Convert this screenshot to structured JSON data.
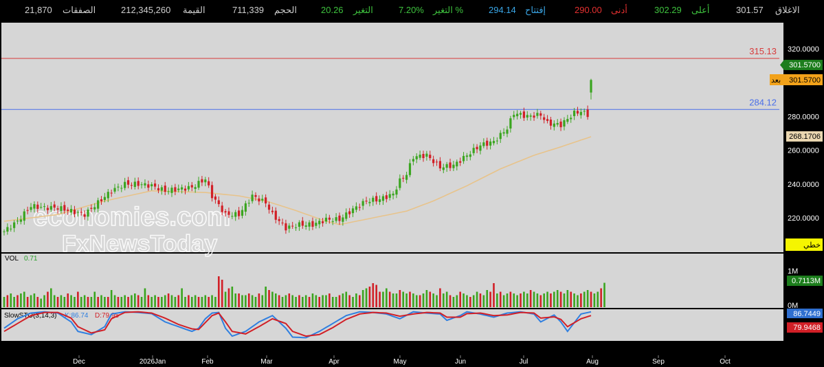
{
  "stats_bar": {
    "close_label": "الاغلاق",
    "close_value": "301.57",
    "high_label": "أعلى",
    "high_value": "302.29",
    "low_label": "أدنى",
    "low_value": "290.00",
    "open_label": "إفتتاح",
    "open_value": "294.14",
    "change_pct_label": "التغير %",
    "change_pct_value": "7.20%",
    "change_label": "التغير",
    "change_value": "20.26",
    "volume_label": "الحجم",
    "volume_value": "711,339",
    "value_label": "القيمة",
    "value_value": "212,345,260",
    "trades_label": "الصفقات",
    "trades_value": "21,870"
  },
  "colors": {
    "up": "#3aa51f",
    "down": "#d11f26",
    "ma": "#e8c38a",
    "resistance": "#d83a3a",
    "support": "#4a6fe8",
    "price_badge": "#1c7d1c",
    "after_badge": "#f2a21a",
    "k_line": "#2f7fe0",
    "d_line": "#d11f26"
  },
  "watermark": {
    "line1": "economies.com",
    "line2": "FxNewsToday"
  },
  "chart_data": [
    {
      "type": "candlestick",
      "id": "price",
      "ylim": [
        203,
        325
      ],
      "y_ticks": [
        "220.0000",
        "240.0000",
        "260.0000",
        "280.0000",
        "300.0000",
        "320.0000"
      ],
      "x_ticks": [
        "Dec",
        "2026Jan",
        "Feb",
        "Mar",
        "Apr",
        "May",
        "Jun",
        "Jul",
        "Aug",
        "Sep",
        "Oct"
      ],
      "hlines": [
        {
          "label": "315.13",
          "value": 315.13
        },
        {
          "label": "284.12",
          "value": 284.12
        }
      ],
      "last_price_badge": "301.5700",
      "after_hours_label": "بعد",
      "after_hours_price": "301.5700",
      "ma_value_badge": "268.1706",
      "scale_button": "خطي",
      "close_series_approx": [
        [
          0,
          212
        ],
        [
          4,
          218
        ],
        [
          8,
          227
        ],
        [
          12,
          226
        ],
        [
          16,
          226
        ],
        [
          20,
          224
        ],
        [
          24,
          222
        ],
        [
          28,
          229
        ],
        [
          32,
          236
        ],
        [
          36,
          240
        ],
        [
          40,
          240
        ],
        [
          44,
          239
        ],
        [
          48,
          236
        ],
        [
          52,
          237
        ],
        [
          56,
          238
        ],
        [
          60,
          243
        ],
        [
          62,
          233
        ],
        [
          66,
          222
        ],
        [
          70,
          222
        ],
        [
          74,
          233
        ],
        [
          78,
          229
        ],
        [
          80,
          222
        ],
        [
          84,
          214
        ],
        [
          88,
          216
        ],
        [
          92,
          216
        ],
        [
          96,
          219
        ],
        [
          100,
          219
        ],
        [
          104,
          225
        ],
        [
          108,
          230
        ],
        [
          112,
          231
        ],
        [
          116,
          234
        ],
        [
          118,
          242
        ],
        [
          120,
          246
        ],
        [
          122,
          256
        ],
        [
          126,
          257
        ],
        [
          130,
          250
        ],
        [
          134,
          251
        ],
        [
          138,
          257
        ],
        [
          142,
          263
        ],
        [
          146,
          265
        ],
        [
          150,
          273
        ],
        [
          152,
          282
        ],
        [
          156,
          280
        ],
        [
          160,
          281
        ],
        [
          162,
          276
        ],
        [
          166,
          275
        ],
        [
          170,
          282
        ],
        [
          172,
          283
        ],
        [
          174,
          281
        ],
        [
          175,
          300
        ]
      ],
      "ma_series_approx": [
        [
          0,
          218
        ],
        [
          16,
          222
        ],
        [
          30,
          230
        ],
        [
          44,
          236
        ],
        [
          60,
          235
        ],
        [
          70,
          233
        ],
        [
          78,
          230
        ],
        [
          86,
          225
        ],
        [
          96,
          218
        ],
        [
          100,
          216
        ],
        [
          110,
          220
        ],
        [
          120,
          224
        ],
        [
          128,
          230
        ],
        [
          138,
          239
        ],
        [
          148,
          249
        ],
        [
          158,
          257
        ],
        [
          166,
          262
        ],
        [
          175,
          268
        ]
      ]
    },
    {
      "type": "bar",
      "id": "volume",
      "title": "VOL",
      "value_label": "0.71",
      "y_ticks": [
        "0M",
        "1M"
      ],
      "current_badge": "0.7113M",
      "unit": "M",
      "values_approx": [
        0.3,
        0.35,
        0.4,
        0.3,
        0.35,
        0.4,
        0.45,
        0.3,
        0.35,
        0.4,
        0.3,
        0.25,
        0.35,
        0.45,
        0.55,
        0.35,
        0.3,
        0.35,
        0.3,
        0.4,
        0.35,
        0.3,
        0.45,
        0.3,
        0.35,
        0.3,
        0.3,
        0.45,
        0.3,
        0.35,
        0.3,
        0.3,
        0.5,
        0.35,
        0.3,
        0.3,
        0.35,
        0.3,
        0.35,
        0.4,
        0.35,
        0.3,
        0.55,
        0.35,
        0.3,
        0.35,
        0.3,
        0.3,
        0.35,
        0.4,
        0.35,
        0.3,
        0.35,
        0.55,
        0.3,
        0.35,
        0.3,
        0.35,
        0.3,
        0.3,
        0.35,
        0.3,
        0.35,
        0.3,
        0.9,
        0.8,
        0.45,
        0.55,
        0.6,
        0.4,
        0.4,
        0.35,
        0.35,
        0.4,
        0.35,
        0.3,
        0.4,
        0.35,
        0.6,
        0.5,
        0.45,
        0.4,
        0.35,
        0.3,
        0.35,
        0.4,
        0.35,
        0.3,
        0.35,
        0.3,
        0.35,
        0.3,
        0.4,
        0.35,
        0.3,
        0.35,
        0.35,
        0.4,
        0.3,
        0.3,
        0.35,
        0.4,
        0.45,
        0.35,
        0.3,
        0.4,
        0.35,
        0.5,
        0.55,
        0.6,
        0.7,
        0.65,
        0.45,
        0.45,
        0.55,
        0.45,
        0.4,
        0.4,
        0.5,
        0.45,
        0.4,
        0.45,
        0.4,
        0.35,
        0.35,
        0.4,
        0.5,
        0.45,
        0.4,
        0.35,
        0.55,
        0.4,
        0.45,
        0.35,
        0.3,
        0.35,
        0.45,
        0.4,
        0.35,
        0.3,
        0.35,
        0.45,
        0.4,
        0.35,
        0.5,
        0.45,
        0.7,
        0.4,
        0.45,
        0.35,
        0.4,
        0.45,
        0.4,
        0.35,
        0.4,
        0.45,
        0.4,
        0.5,
        0.45,
        0.4,
        0.35,
        0.4,
        0.45,
        0.4,
        0.45,
        0.5,
        0.45,
        0.4,
        0.5,
        0.45,
        0.4,
        0.35,
        0.4,
        0.45,
        0.5,
        0.45,
        0.4,
        0.45,
        0.55,
        0.71
      ]
    },
    {
      "type": "line",
      "id": "stochastic",
      "title": "SlowSTO(3,14,3)",
      "k_label": "K:86.74",
      "d_label": "D:79.95",
      "k_badge": "86.7449",
      "d_badge": "79.9468",
      "ylim": [
        0,
        100
      ],
      "k_series_approx": [
        [
          0,
          40
        ],
        [
          4,
          70
        ],
        [
          8,
          88
        ],
        [
          12,
          92
        ],
        [
          16,
          88
        ],
        [
          20,
          60
        ],
        [
          22,
          30
        ],
        [
          26,
          20
        ],
        [
          30,
          45
        ],
        [
          32,
          85
        ],
        [
          36,
          92
        ],
        [
          40,
          90
        ],
        [
          44,
          86
        ],
        [
          48,
          60
        ],
        [
          52,
          45
        ],
        [
          56,
          30
        ],
        [
          58,
          40
        ],
        [
          60,
          70
        ],
        [
          62,
          88
        ],
        [
          64,
          90
        ],
        [
          66,
          40
        ],
        [
          68,
          15
        ],
        [
          72,
          30
        ],
        [
          76,
          60
        ],
        [
          80,
          80
        ],
        [
          84,
          40
        ],
        [
          86,
          12
        ],
        [
          90,
          10
        ],
        [
          94,
          30
        ],
        [
          98,
          55
        ],
        [
          102,
          80
        ],
        [
          106,
          92
        ],
        [
          110,
          90
        ],
        [
          114,
          85
        ],
        [
          118,
          70
        ],
        [
          122,
          92
        ],
        [
          126,
          88
        ],
        [
          130,
          85
        ],
        [
          132,
          65
        ],
        [
          136,
          80
        ],
        [
          138,
          92
        ],
        [
          142,
          85
        ],
        [
          146,
          75
        ],
        [
          150,
          88
        ],
        [
          154,
          92
        ],
        [
          158,
          85
        ],
        [
          160,
          60
        ],
        [
          164,
          82
        ],
        [
          166,
          60
        ],
        [
          168,
          30
        ],
        [
          172,
          85
        ],
        [
          175,
          92
        ]
      ],
      "d_series_approx": [
        [
          0,
          30
        ],
        [
          4,
          55
        ],
        [
          8,
          80
        ],
        [
          12,
          90
        ],
        [
          16,
          90
        ],
        [
          20,
          72
        ],
        [
          22,
          45
        ],
        [
          26,
          25
        ],
        [
          30,
          35
        ],
        [
          32,
          70
        ],
        [
          36,
          90
        ],
        [
          40,
          92
        ],
        [
          44,
          88
        ],
        [
          48,
          72
        ],
        [
          52,
          52
        ],
        [
          56,
          38
        ],
        [
          58,
          36
        ],
        [
          60,
          58
        ],
        [
          62,
          80
        ],
        [
          64,
          88
        ],
        [
          66,
          60
        ],
        [
          68,
          30
        ],
        [
          72,
          22
        ],
        [
          76,
          45
        ],
        [
          80,
          70
        ],
        [
          84,
          55
        ],
        [
          86,
          30
        ],
        [
          90,
          15
        ],
        [
          94,
          20
        ],
        [
          98,
          42
        ],
        [
          102,
          68
        ],
        [
          106,
          85
        ],
        [
          110,
          90
        ],
        [
          114,
          88
        ],
        [
          118,
          78
        ],
        [
          122,
          85
        ],
        [
          126,
          90
        ],
        [
          130,
          88
        ],
        [
          132,
          75
        ],
        [
          136,
          75
        ],
        [
          138,
          86
        ],
        [
          142,
          88
        ],
        [
          146,
          80
        ],
        [
          150,
          82
        ],
        [
          154,
          90
        ],
        [
          158,
          88
        ],
        [
          160,
          72
        ],
        [
          164,
          76
        ],
        [
          166,
          68
        ],
        [
          168,
          45
        ],
        [
          172,
          70
        ],
        [
          175,
          80
        ]
      ]
    }
  ]
}
